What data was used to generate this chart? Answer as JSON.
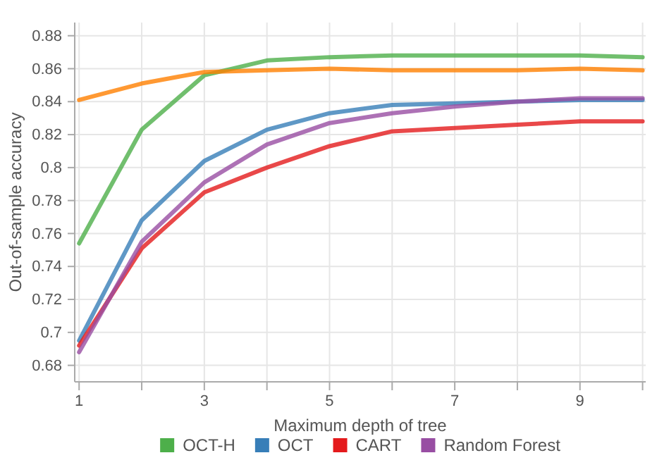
{
  "chart_data": {
    "type": "line",
    "xlabel": "Maximum depth of tree",
    "ylabel": "Out-of-sample accuracy",
    "x": [
      1,
      2,
      3,
      4,
      5,
      6,
      7,
      8,
      9,
      10
    ],
    "xlim": [
      0.93,
      10.05
    ],
    "xticks": [
      1,
      {
        "value": 2,
        "label": null
      },
      3,
      {
        "value": 4,
        "label": null
      },
      5,
      {
        "value": 6,
        "label": null
      },
      7,
      {
        "value": 8,
        "label": null
      },
      9,
      {
        "value": 10,
        "label": null
      }
    ],
    "ylim": [
      0.67,
      0.888
    ],
    "yticks": [
      0.68,
      0.7,
      0.72,
      0.74,
      0.76,
      0.78,
      0.8,
      0.82,
      0.84,
      0.86,
      0.88
    ],
    "grid": true,
    "legend": "bottom",
    "line_style": "solid",
    "marker": "none",
    "series": [
      {
        "name": "OCT-H",
        "color": "#4daf4a",
        "values": [
          0.754,
          0.823,
          0.856,
          0.865,
          0.867,
          0.868,
          0.868,
          0.868,
          0.868,
          0.867
        ]
      },
      {
        "name": "OCT",
        "color": "#377eb8",
        "values": [
          0.695,
          0.768,
          0.804,
          0.823,
          0.833,
          0.838,
          0.839,
          0.84,
          0.841,
          0.841
        ]
      },
      {
        "name": "CART",
        "color": "#e41a1c",
        "values": [
          0.692,
          0.751,
          0.785,
          0.8,
          0.813,
          0.822,
          0.824,
          0.826,
          0.828,
          0.828
        ]
      },
      {
        "color": "#ff7f00",
        "values": [
          0.841,
          0.851,
          0.858,
          0.859,
          0.86,
          0.859,
          0.859,
          0.859,
          0.86,
          0.859
        ]
      },
      {
        "name": "Random Forest",
        "color": "#984ea3",
        "values": [
          0.688,
          0.755,
          0.791,
          0.814,
          0.827,
          0.833,
          0.837,
          0.84,
          0.842,
          0.842
        ]
      }
    ]
  }
}
